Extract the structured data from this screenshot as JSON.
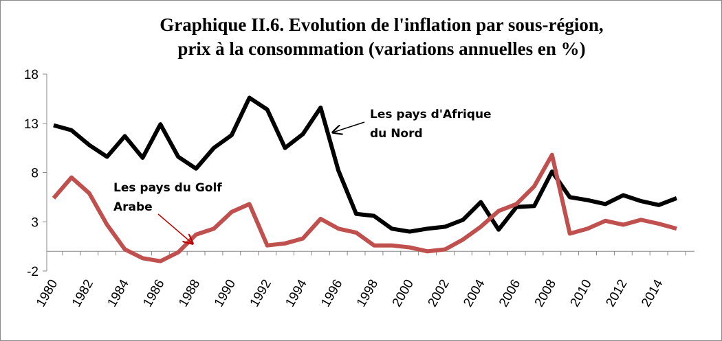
{
  "chart_data": {
    "type": "line",
    "title": [
      "Graphique II.6. Evolution de l'inflation par sous-région,",
      "prix à la consommation (variations annuelles en %)"
    ],
    "x": [
      1980,
      1981,
      1982,
      1983,
      1984,
      1985,
      1986,
      1987,
      1988,
      1989,
      1990,
      1991,
      1992,
      1993,
      1994,
      1995,
      1996,
      1997,
      1998,
      1999,
      2000,
      2001,
      2002,
      2003,
      2004,
      2005,
      2006,
      2007,
      2008,
      2009,
      2010,
      2011,
      2012,
      2013,
      2014,
      2015
    ],
    "xlim": [
      1980,
      2015
    ],
    "xticks": [
      1980,
      1982,
      1984,
      1986,
      1988,
      1990,
      1992,
      1994,
      1996,
      1998,
      2000,
      2002,
      2004,
      2006,
      2008,
      2010,
      2012,
      2014
    ],
    "ylim": [
      -2,
      18
    ],
    "yticks": [
      -2,
      3,
      8,
      13,
      18
    ],
    "series": [
      {
        "color": "#000000",
        "values": [
          12.8,
          12.3,
          10.8,
          9.6,
          11.7,
          9.5,
          12.9,
          9.6,
          8.4,
          10.5,
          11.8,
          15.6,
          14.4,
          10.5,
          11.9,
          14.6,
          8.2,
          3.8,
          3.6,
          2.3,
          2.0,
          2.3,
          2.5,
          3.2,
          5.0,
          2.2,
          4.5,
          4.6,
          8.1,
          5.5,
          5.2,
          4.8,
          5.7,
          5.1,
          4.7,
          5.4
        ]
      },
      {
        "color": "#c0504d",
        "values": [
          5.4,
          7.5,
          5.9,
          2.7,
          0.2,
          -0.7,
          -1.0,
          -0.1,
          1.7,
          2.3,
          4.0,
          4.8,
          0.6,
          0.8,
          1.3,
          3.3,
          2.3,
          1.9,
          0.6,
          0.6,
          0.4,
          0.0,
          0.2,
          1.2,
          2.5,
          4.1,
          4.8,
          6.6,
          9.8,
          1.8,
          2.3,
          3.1,
          2.7,
          3.2,
          2.8,
          2.3
        ]
      }
    ],
    "annotations": [
      {
        "lines": [
          "Les pays d'Afrique",
          "du Nord"
        ],
        "arrow_color": "#000000"
      },
      {
        "lines": [
          "Les pays du Golf",
          "Arabe"
        ],
        "arrow_color": "#c00000"
      }
    ]
  }
}
